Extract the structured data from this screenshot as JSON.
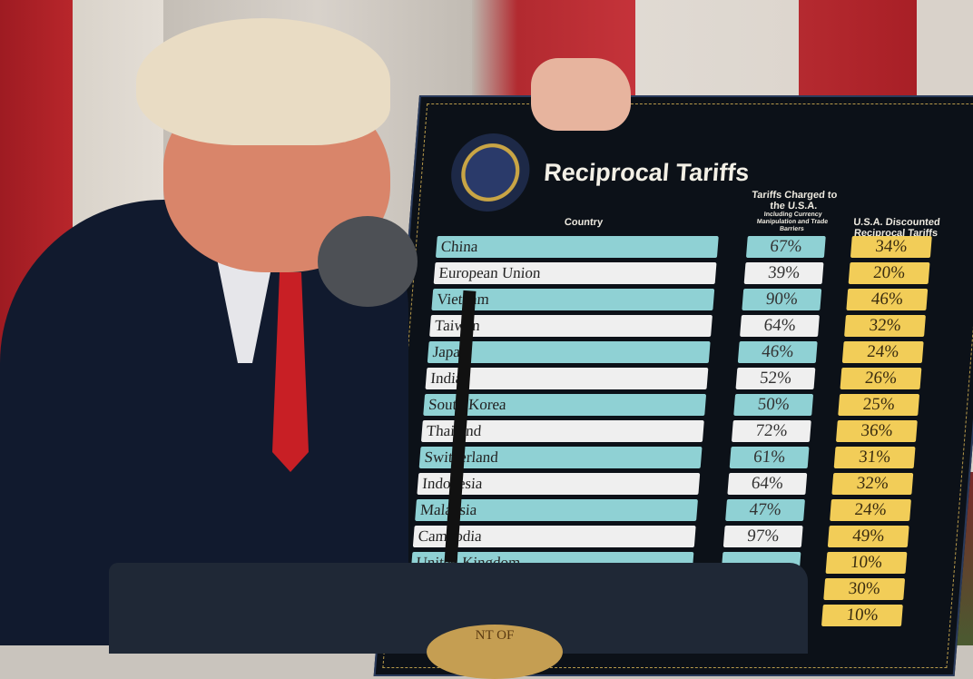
{
  "board": {
    "title": "Reciprocal Tariffs",
    "seal_text": "SEAL OF THE PRESIDENT OF THE UNITED STATES",
    "headers": {
      "country": "Country",
      "charged": "Tariffs Charged to the U.S.A.",
      "charged_note": "Including Currency Manipulation and Trade Barriers",
      "discounted": "U.S.A. Discounted Reciprocal Tariffs"
    },
    "rows": [
      {
        "country": "China",
        "charged": "67%",
        "discounted": "34%"
      },
      {
        "country": "European Union",
        "charged": "39%",
        "discounted": "20%"
      },
      {
        "country": "Vietnam",
        "charged": "90%",
        "discounted": "46%"
      },
      {
        "country": "Taiwan",
        "charged": "64%",
        "discounted": "32%"
      },
      {
        "country": "Japan",
        "charged": "46%",
        "discounted": "24%"
      },
      {
        "country": "India",
        "charged": "52%",
        "discounted": "26%"
      },
      {
        "country": "South Korea",
        "charged": "50%",
        "discounted": "25%"
      },
      {
        "country": "Thailand",
        "charged": "72%",
        "discounted": "36%"
      },
      {
        "country": "Switzerland",
        "charged": "61%",
        "discounted": "31%"
      },
      {
        "country": "Indonesia",
        "charged": "64%",
        "discounted": "32%"
      },
      {
        "country": "Malaysia",
        "charged": "47%",
        "discounted": "24%"
      },
      {
        "country": "Cambodia",
        "charged": "97%",
        "discounted": "49%"
      },
      {
        "country": "United Kingdom",
        "charged": "",
        "discounted": "10%"
      },
      {
        "country": "",
        "charged": "",
        "discounted": "30%"
      },
      {
        "country": "",
        "charged": "",
        "discounted": "10%"
      }
    ]
  },
  "podium": {
    "seal_text": "NT OF"
  },
  "colors": {
    "teal": "#8fd1d4",
    "gold": "#f2cd58",
    "board": "#0c1118",
    "tie": "#c81f25"
  }
}
